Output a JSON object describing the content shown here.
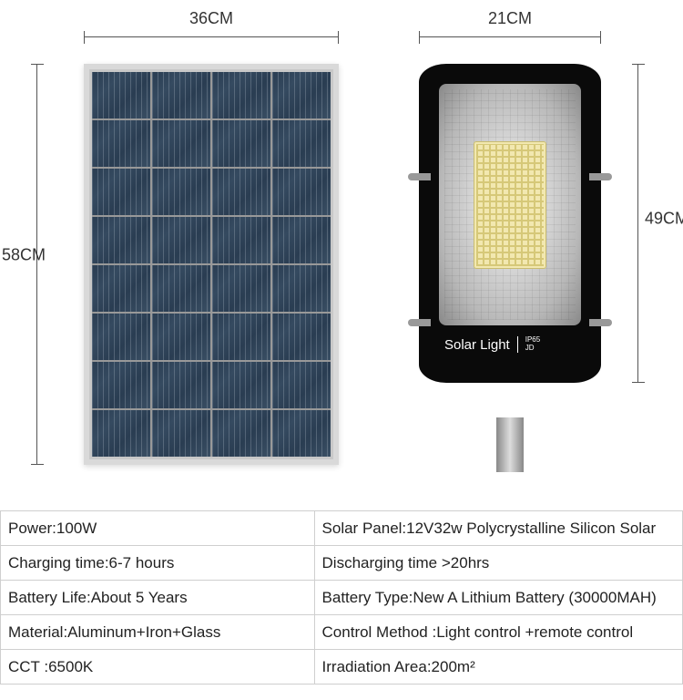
{
  "dimensions": {
    "panel_width": "36CM",
    "panel_height": "58CM",
    "light_width": "21CM",
    "light_height": "49CM"
  },
  "lamp": {
    "brand_text": "Solar Light",
    "rating1": "IP65",
    "rating2": "JD"
  },
  "specs": [
    [
      "Power:100W",
      "Solar Panel:12V32w Polycrystalline Silicon Solar"
    ],
    [
      "Charging time:6-7 hours",
      "Discharging time >20hrs"
    ],
    [
      "Battery Life:About 5 Years",
      "Battery Type:New A Lithium Battery (30000MAH)"
    ],
    [
      "Material:Aluminum+Iron+Glass",
      "Control Method :Light control +remote control"
    ],
    [
      "CCT :6500K",
      "Irradiation Area:200m²"
    ]
  ],
  "colors": {
    "panel_cell": "#2a3d52",
    "panel_frame": "#d9d9d9",
    "lamp_body": "#0a0a0a",
    "led_color": "#f2e8b0",
    "border": "#cfcfcf",
    "text": "#222222"
  }
}
